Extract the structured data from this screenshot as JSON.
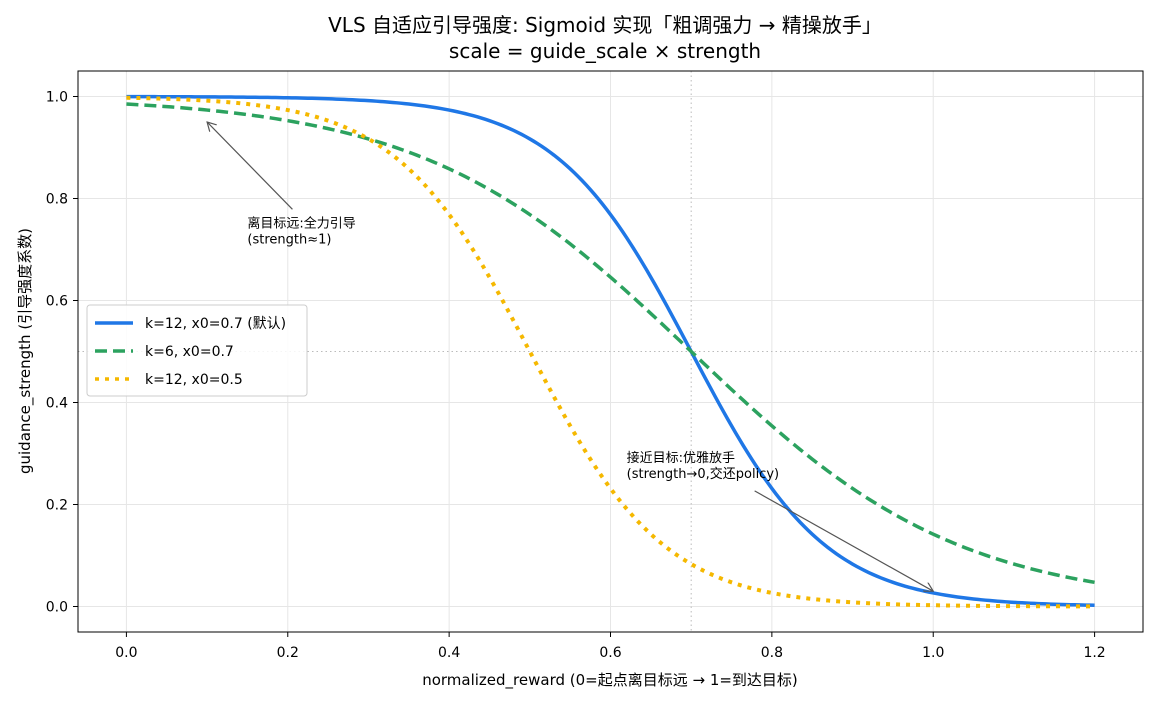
{
  "chart_data": {
    "type": "line",
    "title": "VLS 自适应引导强度: Sigmoid 实现「粗调强力 → 精操放手」",
    "subtitle": "scale = guide_scale × strength",
    "xlabel": "normalized_reward (0=起点离目标远 → 1=到达目标)",
    "ylabel": "guidance_strength (引导强度系数)",
    "xlim": [
      -0.06,
      1.26
    ],
    "ylim": [
      -0.05,
      1.05
    ],
    "x_ticks": [
      "0.0",
      "0.2",
      "0.4",
      "0.6",
      "0.8",
      "1.0",
      "1.2"
    ],
    "y_ticks": [
      "0.0",
      "0.2",
      "0.4",
      "0.6",
      "0.8",
      "1.0"
    ],
    "grid": true,
    "legend_position": "center-left",
    "reference_lines": {
      "x": 0.7,
      "y": 0.5
    },
    "series": [
      {
        "name": "k=12, x0=0.7 (默认)",
        "k": 12,
        "x0": 0.7,
        "x_range": [
          0,
          1.2
        ],
        "color": "#1f77e6",
        "style": "solid"
      },
      {
        "name": "k=6, x0=0.7",
        "k": 6,
        "x0": 0.7,
        "x_range": [
          0,
          1.2
        ],
        "color": "#2ca25f",
        "style": "dashed"
      },
      {
        "name": "k=12, x0=0.5",
        "k": 12,
        "x0": 0.5,
        "x_range": [
          0,
          1.2
        ],
        "color": "#f5b800",
        "style": "dotted"
      }
    ],
    "annotations": [
      {
        "lines": [
          "离目标远:全力引导",
          "(strength≈1)"
        ],
        "text_at": [
          0.15,
          0.72
        ],
        "arrow_to": [
          0.1,
          0.95
        ]
      },
      {
        "lines": [
          "接近目标:优雅放手",
          "(strength→0,交还policy)"
        ],
        "text_at": [
          0.62,
          0.26
        ],
        "arrow_to": [
          1.0,
          0.03
        ]
      }
    ]
  }
}
